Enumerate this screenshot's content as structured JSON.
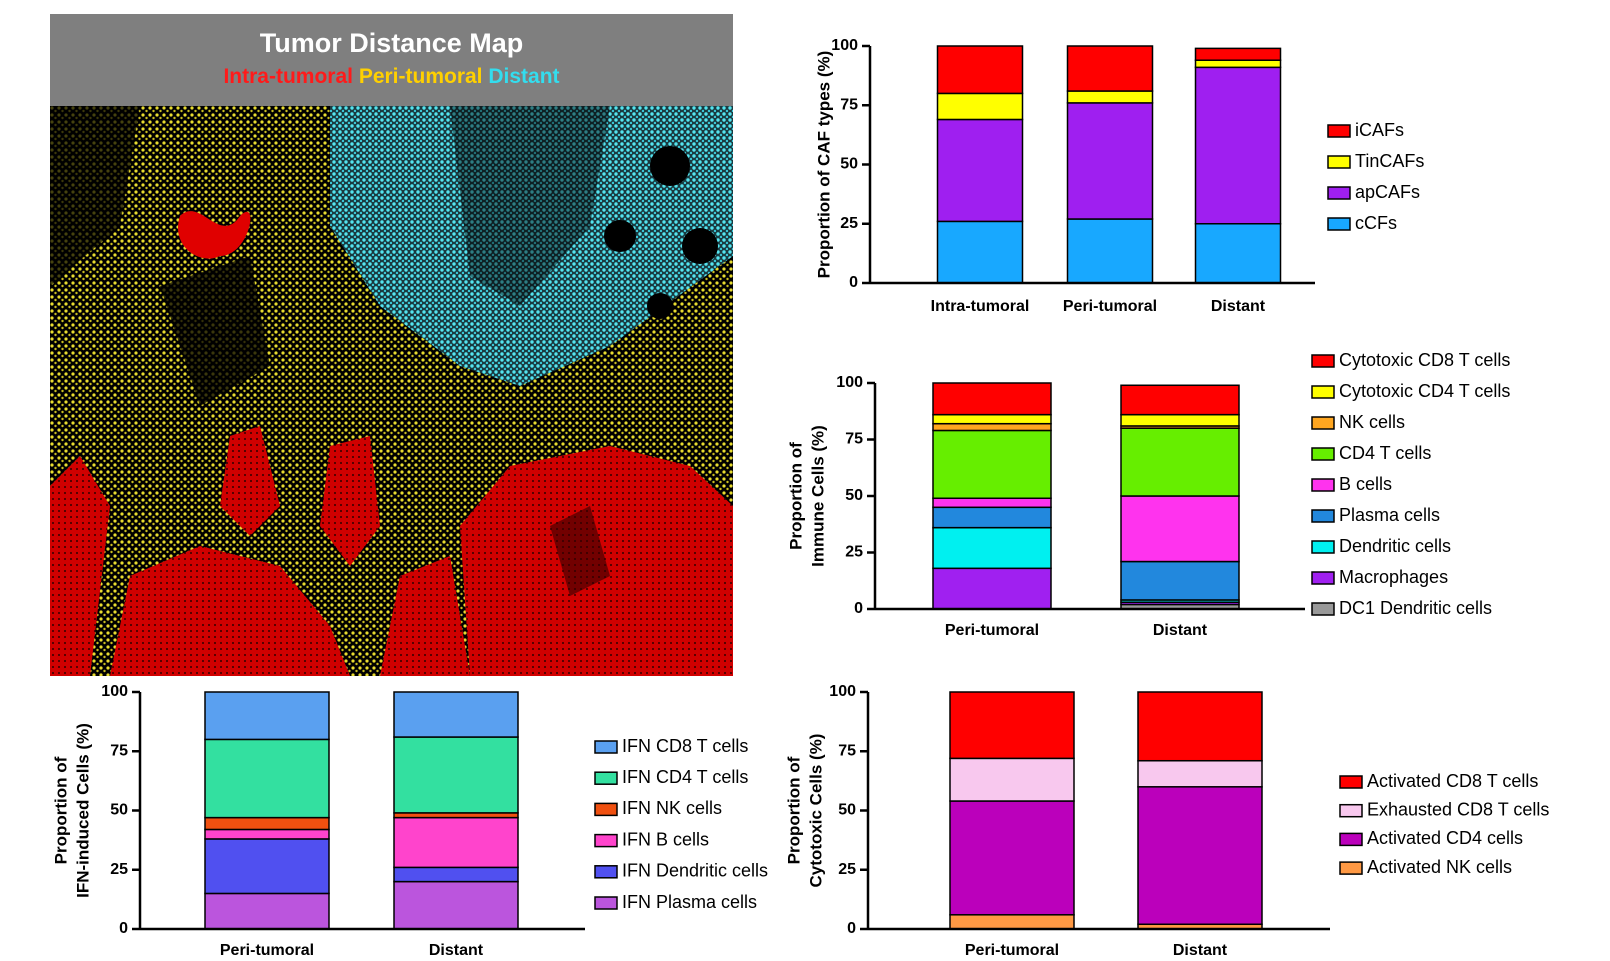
{
  "image_panel": {
    "title": "Tumor Distance Map",
    "legend": [
      {
        "text": "Intra-tumoral",
        "color": "#ff1a1a"
      },
      {
        "text": "Peri-tumoral",
        "color": "#ffd000"
      },
      {
        "text": "Distant",
        "color": "#33ddee"
      }
    ]
  },
  "chart_data": [
    {
      "type": "bar",
      "stacked": true,
      "ylabel": [
        "Proportion of CAF types (%)"
      ],
      "categories": [
        "Intra-tumoral",
        "Peri-tumoral",
        "Distant"
      ],
      "ylim": [
        0,
        100
      ],
      "yticks": [
        0,
        25,
        50,
        75,
        100
      ],
      "series": [
        {
          "name": "iCAFs",
          "color": "#ff0000",
          "values": [
            20,
            19,
            5
          ]
        },
        {
          "name": "TinCAFs",
          "color": "#ffff00",
          "values": [
            11,
            5,
            3
          ]
        },
        {
          "name": "apCAFs",
          "color": "#9f1ff0",
          "values": [
            43,
            49,
            66
          ]
        },
        {
          "name": "cCFs",
          "color": "#18a8ff",
          "values": [
            26,
            27,
            25
          ]
        }
      ]
    },
    {
      "type": "bar",
      "stacked": true,
      "ylabel": [
        "Proportion of",
        "Immune Cells (%)"
      ],
      "categories": [
        "Peri-tumoral",
        "Distant"
      ],
      "ylim": [
        0,
        100
      ],
      "yticks": [
        0,
        25,
        50,
        75,
        100
      ],
      "series": [
        {
          "name": "Cytotoxic CD8 T cells",
          "color": "#ff0000",
          "values": [
            14,
            13
          ]
        },
        {
          "name": "Cytotoxic CD4 T cells",
          "color": "#ffff00",
          "values": [
            4,
            5
          ]
        },
        {
          "name": "NK cells",
          "color": "#ffa620",
          "values": [
            3,
            1
          ]
        },
        {
          "name": "CD4 T cells",
          "color": "#66ee00",
          "values": [
            30,
            30
          ]
        },
        {
          "name": "B cells",
          "color": "#ff33ee",
          "values": [
            4,
            29
          ]
        },
        {
          "name": "Plasma cells",
          "color": "#2288dd",
          "values": [
            9,
            17
          ]
        },
        {
          "name": "Dendritic cells",
          "color": "#00f0f0",
          "values": [
            18,
            1
          ]
        },
        {
          "name": "Macrophages",
          "color": "#a020f0",
          "values": [
            18,
            1
          ]
        },
        {
          "name": "DC1 Dendritic cells",
          "color": "#999999",
          "values": [
            0,
            2
          ]
        }
      ]
    },
    {
      "type": "bar",
      "stacked": true,
      "ylabel": [
        "Proportion of",
        "IFN-induced Cells (%)"
      ],
      "categories": [
        "Peri-tumoral",
        "Distant"
      ],
      "ylim": [
        0,
        100
      ],
      "yticks": [
        0,
        25,
        50,
        75,
        100
      ],
      "series": [
        {
          "name": "IFN CD8 T cells",
          "color": "#5aa0f0",
          "values": [
            20,
            19
          ]
        },
        {
          "name": "IFN CD4 T cells",
          "color": "#33e0a0",
          "values": [
            33,
            32
          ]
        },
        {
          "name": "IFN NK cells",
          "color": "#f05010",
          "values": [
            5,
            2
          ]
        },
        {
          "name": "IFN B cells",
          "color": "#ff44cc",
          "values": [
            4,
            21
          ]
        },
        {
          "name": "IFN Dendritic cells",
          "color": "#5050f0",
          "values": [
            23,
            6
          ]
        },
        {
          "name": "IFN Plasma cells",
          "color": "#bb55dd",
          "values": [
            15,
            20
          ]
        }
      ]
    },
    {
      "type": "bar",
      "stacked": true,
      "ylabel": [
        "Proportion of",
        "Cytotoxic Cells (%)"
      ],
      "categories": [
        "Peri-tumoral",
        "Distant"
      ],
      "ylim": [
        0,
        100
      ],
      "yticks": [
        0,
        25,
        50,
        75,
        100
      ],
      "series": [
        {
          "name": "Activated CD8 T cells",
          "color": "#ff0000",
          "values": [
            28,
            29
          ]
        },
        {
          "name": "Exhausted CD8 T cells",
          "color": "#f8c8ee",
          "values": [
            18,
            11
          ]
        },
        {
          "name": "Activated CD4 cells",
          "color": "#bb00bb",
          "values": [
            48,
            58
          ]
        },
        {
          "name": "Activated NK cells",
          "color": "#ff9944",
          "values": [
            6,
            2
          ]
        }
      ]
    }
  ]
}
